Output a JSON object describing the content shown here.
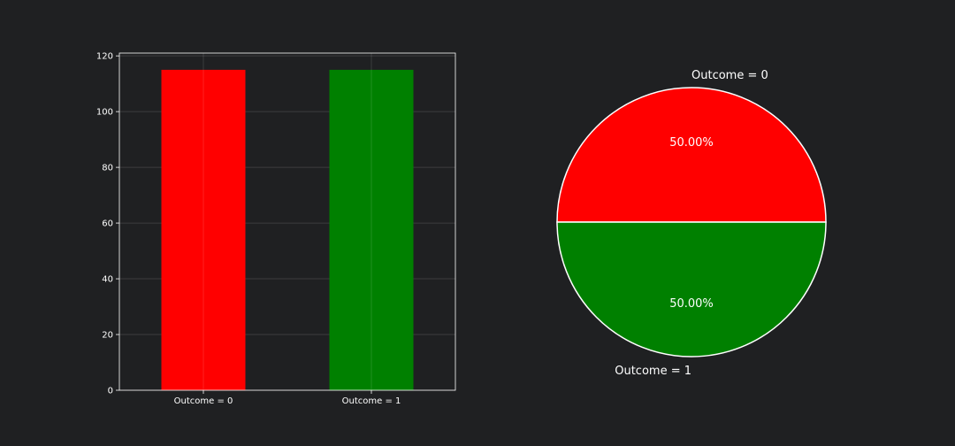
{
  "figure": {
    "background": "#1f2022"
  },
  "chart_data": [
    {
      "type": "bar",
      "categories": [
        "Outcome = 0",
        "Outcome = 1"
      ],
      "values": [
        115,
        115
      ],
      "colors": [
        "#ff0000",
        "#008000"
      ],
      "ylim": [
        0,
        120
      ],
      "yticks": [
        0,
        20,
        40,
        60,
        80,
        100,
        120
      ],
      "grid": true,
      "xlabel": "",
      "ylabel": "",
      "title": ""
    },
    {
      "type": "pie",
      "labels": [
        "Outcome = 0",
        "Outcome = 1"
      ],
      "values": [
        50,
        50
      ],
      "pct_labels": [
        "50.00%",
        "50.00%"
      ],
      "colors": [
        "#ff0000",
        "#008000"
      ],
      "edge_color": "#ffffff"
    }
  ]
}
